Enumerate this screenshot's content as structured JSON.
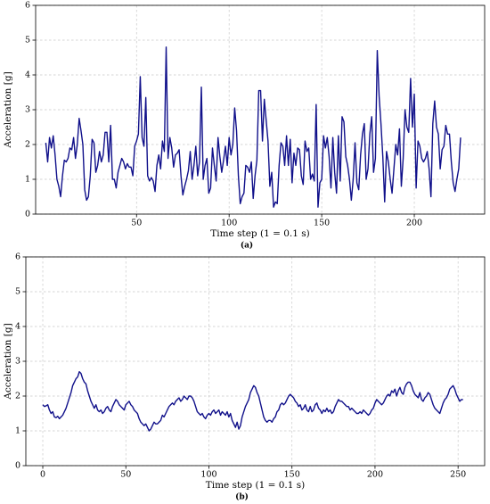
{
  "chart_data": [
    {
      "type": "line",
      "xlabel": "Time step (1 = 0.1 s)",
      "ylabel": "Acceleration [g]",
      "caption": "(a)",
      "color": "#10108a",
      "grid": true,
      "xlim": [
        -4.5,
        238
      ],
      "ylim": [
        0,
        6
      ],
      "xticks": [
        50,
        100,
        150,
        200
      ],
      "yticks": [
        0,
        1,
        2,
        3,
        4,
        5,
        6
      ],
      "x": [
        1,
        2,
        3,
        4,
        5,
        6,
        7,
        8,
        9,
        10,
        11,
        12,
        13,
        14,
        15,
        16,
        17,
        18,
        19,
        20,
        21,
        22,
        23,
        24,
        25,
        26,
        27,
        28,
        29,
        30,
        31,
        32,
        33,
        34,
        35,
        36,
        37,
        38,
        39,
        40,
        41,
        42,
        43,
        44,
        45,
        46,
        47,
        48,
        49,
        50,
        51,
        52,
        53,
        54,
        55,
        56,
        57,
        58,
        59,
        60,
        61,
        62,
        63,
        64,
        65,
        66,
        67,
        68,
        69,
        70,
        71,
        72,
        73,
        74,
        75,
        76,
        77,
        78,
        79,
        80,
        81,
        82,
        83,
        84,
        85,
        86,
        87,
        88,
        89,
        90,
        91,
        92,
        93,
        94,
        95,
        96,
        97,
        98,
        99,
        100,
        101,
        102,
        103,
        104,
        105,
        106,
        107,
        108,
        109,
        110,
        111,
        112,
        113,
        114,
        115,
        116,
        117,
        118,
        119,
        120,
        121,
        122,
        123,
        124,
        125,
        126,
        127,
        128,
        129,
        130,
        131,
        132,
        133,
        134,
        135,
        136,
        137,
        138,
        139,
        140,
        141,
        142,
        143,
        144,
        145,
        146,
        147,
        148,
        149,
        150,
        151,
        152,
        153,
        154,
        155,
        156,
        157,
        158,
        159,
        160,
        161,
        162,
        163,
        164,
        165,
        166,
        167,
        168,
        169,
        170,
        171,
        172,
        173,
        174,
        175,
        176,
        177,
        178,
        179,
        180,
        181,
        182,
        183,
        184,
        185,
        186,
        187,
        188,
        189,
        190,
        191,
        192,
        193,
        194,
        195,
        196,
        197,
        198,
        199,
        200,
        201,
        202,
        203,
        204,
        205,
        206,
        207,
        208,
        209,
        210,
        211,
        212,
        213,
        214,
        215,
        216,
        217,
        218,
        219,
        220,
        221,
        222,
        223,
        224,
        225
      ],
      "values": [
        2.05,
        1.5,
        2.2,
        1.9,
        2.25,
        1.7,
        1.0,
        0.8,
        0.5,
        1.1,
        1.55,
        1.5,
        1.6,
        1.9,
        1.85,
        2.2,
        1.6,
        2.0,
        2.75,
        2.4,
        2.0,
        0.7,
        0.4,
        0.5,
        1.1,
        2.15,
        2.05,
        1.2,
        1.4,
        1.8,
        1.5,
        1.7,
        2.35,
        2.35,
        1.5,
        2.55,
        1.0,
        1.0,
        0.75,
        1.2,
        1.4,
        1.6,
        1.5,
        1.3,
        1.45,
        1.35,
        1.35,
        1.1,
        1.95,
        2.1,
        2.3,
        3.95,
        2.2,
        1.95,
        3.35,
        1.1,
        0.95,
        1.05,
        0.95,
        0.65,
        1.4,
        1.7,
        1.3,
        2.1,
        1.8,
        4.8,
        1.6,
        2.2,
        1.9,
        1.35,
        1.7,
        1.75,
        1.85,
        1.1,
        0.55,
        0.8,
        1.0,
        1.25,
        1.8,
        1.0,
        1.4,
        1.95,
        1.1,
        1.5,
        3.65,
        1.0,
        1.4,
        1.6,
        0.6,
        0.75,
        1.9,
        1.4,
        0.95,
        2.2,
        1.65,
        1.2,
        1.55,
        1.95,
        1.4,
        2.2,
        1.7,
        2.0,
        3.05,
        2.4,
        1.1,
        0.3,
        0.5,
        0.6,
        1.4,
        1.35,
        1.2,
        1.5,
        0.45,
        1.1,
        1.55,
        3.55,
        3.55,
        2.1,
        3.3,
        2.7,
        2.1,
        0.8,
        1.2,
        0.2,
        0.35,
        0.3,
        1.4,
        2.05,
        1.95,
        1.4,
        2.25,
        1.4,
        2.15,
        0.9,
        1.75,
        1.4,
        1.9,
        1.85,
        1.1,
        0.85,
        2.1,
        1.8,
        1.9,
        1.0,
        1.15,
        0.95,
        3.15,
        0.2,
        0.9,
        1.0,
        2.25,
        1.9,
        2.2,
        1.65,
        0.75,
        2.2,
        1.2,
        0.6,
        2.25,
        0.95,
        2.8,
        2.65,
        1.65,
        1.4,
        1.0,
        0.4,
        1.0,
        2.05,
        0.9,
        0.7,
        1.7,
        2.3,
        2.6,
        1.0,
        1.3,
        2.3,
        2.8,
        1.2,
        1.6,
        4.7,
        3.4,
        2.6,
        1.65,
        0.35,
        1.8,
        1.5,
        1.0,
        0.6,
        1.3,
        2.0,
        1.7,
        2.45,
        0.8,
        1.6,
        3.0,
        2.5,
        2.35,
        3.9,
        2.5,
        3.45,
        0.75,
        2.1,
        1.95,
        1.6,
        1.5,
        1.6,
        1.8,
        1.3,
        0.5,
        2.6,
        3.25,
        2.5,
        2.3,
        1.3,
        1.85,
        1.95,
        2.55,
        2.3,
        2.3,
        1.5,
        0.9,
        0.65,
        1.0,
        1.3,
        2.2
      ]
    },
    {
      "type": "line",
      "xlabel": "Time step (1 = 0.1 s)",
      "ylabel": "Acceleration [g]",
      "caption": "(b)",
      "color": "#10108a",
      "grid": true,
      "xlim": [
        -10.2,
        266
      ],
      "ylim": [
        0,
        6
      ],
      "xticks": [
        0,
        50,
        100,
        150,
        200,
        250
      ],
      "yticks": [
        0,
        1,
        2,
        3,
        4,
        5,
        6
      ],
      "x": [
        0,
        1,
        2,
        3,
        4,
        5,
        6,
        7,
        8,
        9,
        10,
        11,
        12,
        13,
        14,
        15,
        16,
        17,
        18,
        19,
        20,
        21,
        22,
        23,
        24,
        25,
        26,
        27,
        28,
        29,
        30,
        31,
        32,
        33,
        34,
        35,
        36,
        37,
        38,
        39,
        40,
        41,
        42,
        43,
        44,
        45,
        46,
        47,
        48,
        49,
        50,
        51,
        52,
        53,
        54,
        55,
        56,
        57,
        58,
        59,
        60,
        61,
        62,
        63,
        64,
        65,
        66,
        67,
        68,
        69,
        70,
        71,
        72,
        73,
        74,
        75,
        76,
        77,
        78,
        79,
        80,
        81,
        82,
        83,
        84,
        85,
        86,
        87,
        88,
        89,
        90,
        91,
        92,
        93,
        94,
        95,
        96,
        97,
        98,
        99,
        100,
        101,
        102,
        103,
        104,
        105,
        106,
        107,
        108,
        109,
        110,
        111,
        112,
        113,
        114,
        115,
        116,
        117,
        118,
        119,
        120,
        121,
        122,
        123,
        124,
        125,
        126,
        127,
        128,
        129,
        130,
        131,
        132,
        133,
        134,
        135,
        136,
        137,
        138,
        139,
        140,
        141,
        142,
        143,
        144,
        145,
        146,
        147,
        148,
        149,
        150,
        151,
        152,
        153,
        154,
        155,
        156,
        157,
        158,
        159,
        160,
        161,
        162,
        163,
        164,
        165,
        166,
        167,
        168,
        169,
        170,
        171,
        172,
        173,
        174,
        175,
        176,
        177,
        178,
        179,
        180,
        181,
        182,
        183,
        184,
        185,
        186,
        187,
        188,
        189,
        190,
        191,
        192,
        193,
        194,
        195,
        196,
        197,
        198,
        199,
        200,
        201,
        202,
        203,
        204,
        205,
        206,
        207,
        208,
        209,
        210,
        211,
        212,
        213,
        214,
        215,
        216,
        217,
        218,
        219,
        220,
        221,
        222,
        223,
        224,
        225,
        226,
        227,
        228,
        229,
        230,
        231,
        232,
        233,
        234,
        235,
        236,
        237,
        238,
        239,
        240,
        241,
        242,
        243,
        244,
        245,
        246,
        247,
        248,
        249,
        250,
        251,
        252,
        253
      ],
      "values": [
        1.75,
        1.7,
        1.72,
        1.75,
        1.6,
        1.5,
        1.55,
        1.4,
        1.38,
        1.42,
        1.35,
        1.4,
        1.45,
        1.55,
        1.65,
        1.8,
        1.95,
        2.1,
        2.3,
        2.4,
        2.5,
        2.55,
        2.7,
        2.65,
        2.5,
        2.4,
        2.35,
        2.15,
        2.0,
        1.85,
        1.75,
        1.65,
        1.75,
        1.6,
        1.55,
        1.6,
        1.5,
        1.55,
        1.65,
        1.7,
        1.6,
        1.55,
        1.7,
        1.8,
        1.9,
        1.85,
        1.75,
        1.7,
        1.65,
        1.6,
        1.75,
        1.8,
        1.85,
        1.75,
        1.7,
        1.6,
        1.55,
        1.5,
        1.35,
        1.25,
        1.2,
        1.15,
        1.2,
        1.1,
        1.0,
        1.05,
        1.15,
        1.25,
        1.2,
        1.2,
        1.25,
        1.3,
        1.45,
        1.4,
        1.5,
        1.6,
        1.7,
        1.75,
        1.8,
        1.75,
        1.85,
        1.9,
        1.95,
        1.85,
        1.9,
        2.0,
        1.95,
        1.9,
        2.0,
        2.0,
        1.95,
        1.85,
        1.7,
        1.55,
        1.5,
        1.45,
        1.5,
        1.4,
        1.35,
        1.45,
        1.5,
        1.45,
        1.55,
        1.6,
        1.5,
        1.55,
        1.6,
        1.45,
        1.55,
        1.5,
        1.45,
        1.55,
        1.4,
        1.5,
        1.3,
        1.2,
        1.1,
        1.25,
        1.05,
        1.15,
        1.4,
        1.55,
        1.7,
        1.8,
        1.9,
        2.1,
        2.2,
        2.3,
        2.25,
        2.1,
        2.0,
        1.8,
        1.6,
        1.4,
        1.3,
        1.25,
        1.3,
        1.3,
        1.25,
        1.35,
        1.4,
        1.55,
        1.6,
        1.75,
        1.8,
        1.75,
        1.8,
        1.9,
        2.0,
        2.05,
        2.0,
        1.95,
        1.85,
        1.8,
        1.7,
        1.75,
        1.6,
        1.65,
        1.75,
        1.6,
        1.55,
        1.7,
        1.55,
        1.6,
        1.75,
        1.8,
        1.65,
        1.6,
        1.5,
        1.6,
        1.55,
        1.65,
        1.55,
        1.6,
        1.5,
        1.55,
        1.7,
        1.8,
        1.9,
        1.85,
        1.85,
        1.8,
        1.75,
        1.7,
        1.7,
        1.6,
        1.65,
        1.6,
        1.55,
        1.5,
        1.5,
        1.55,
        1.5,
        1.6,
        1.55,
        1.5,
        1.45,
        1.5,
        1.6,
        1.65,
        1.8,
        1.9,
        1.85,
        1.8,
        1.75,
        1.8,
        1.9,
        2.0,
        2.05,
        2.0,
        2.15,
        2.1,
        2.2,
        2.0,
        2.15,
        2.25,
        2.1,
        2.05,
        2.25,
        2.35,
        2.4,
        2.4,
        2.3,
        2.15,
        2.05,
        2.0,
        1.95,
        2.1,
        1.9,
        1.85,
        1.95,
        2.0,
        2.1,
        2.05,
        1.9,
        1.75,
        1.65,
        1.6,
        1.55,
        1.5,
        1.65,
        1.8,
        1.9,
        1.95,
        2.05,
        2.2,
        2.25,
        2.3,
        2.2,
        2.05,
        1.95,
        1.85,
        1.9,
        1.9
      ]
    }
  ]
}
